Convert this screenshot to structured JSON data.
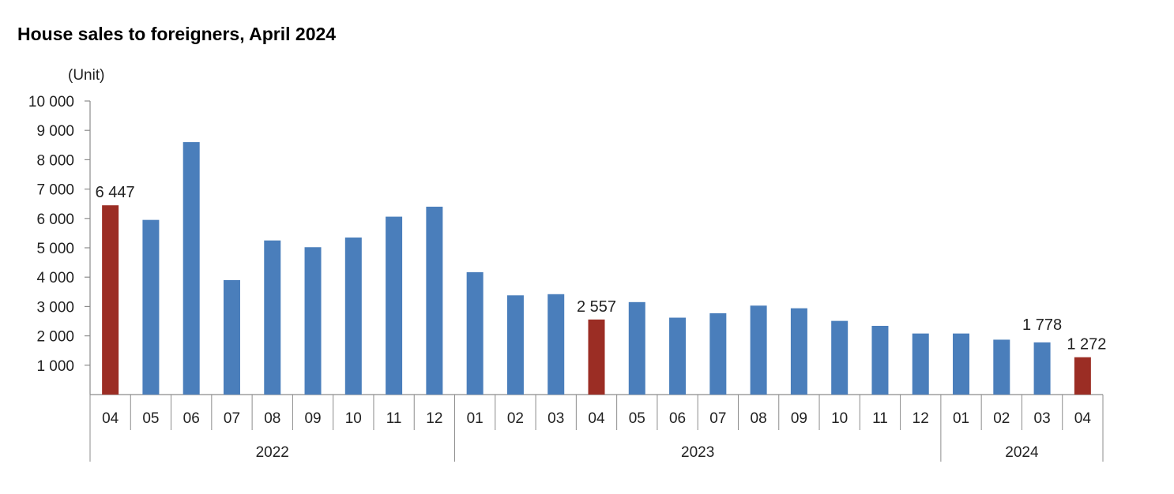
{
  "title": "House sales to foreigners, April 2024",
  "chart_data": {
    "type": "bar",
    "title": "House sales to foreigners, April 2024",
    "unit_label": "(Unit)",
    "ylim": [
      0,
      10000
    ],
    "yticks": [
      {
        "value": 1000,
        "label": "1 000"
      },
      {
        "value": 2000,
        "label": "2 000"
      },
      {
        "value": 3000,
        "label": "3 000"
      },
      {
        "value": 4000,
        "label": "4 000"
      },
      {
        "value": 5000,
        "label": "5 000"
      },
      {
        "value": 6000,
        "label": "6 000"
      },
      {
        "value": 7000,
        "label": "7 000"
      },
      {
        "value": 8000,
        "label": "8 000"
      },
      {
        "value": 9000,
        "label": "9 000"
      },
      {
        "value": 10000,
        "label": "10 000"
      }
    ],
    "grid": false,
    "legend": "none",
    "colors": {
      "default": "#4a7ebb",
      "highlight": "#9b2d24"
    },
    "categories": [
      "04",
      "05",
      "06",
      "07",
      "08",
      "09",
      "10",
      "11",
      "12",
      "01",
      "02",
      "03",
      "04",
      "05",
      "06",
      "07",
      "08",
      "09",
      "10",
      "11",
      "12",
      "01",
      "02",
      "03",
      "04"
    ],
    "values": [
      6447,
      5950,
      8600,
      3900,
      5250,
      5020,
      5350,
      6060,
      6400,
      4170,
      3380,
      3420,
      2557,
      3150,
      2620,
      2770,
      3030,
      2940,
      2510,
      2340,
      2080,
      2080,
      1870,
      1778,
      1272
    ],
    "highlighted": [
      0,
      12,
      24
    ],
    "data_labels": [
      {
        "index": 0,
        "label": "6 447"
      },
      {
        "index": 12,
        "label": "2 557"
      },
      {
        "index": 23,
        "label": "1 778"
      },
      {
        "index": 24,
        "label": "1 272"
      }
    ],
    "year_groups": [
      {
        "label": "2022",
        "start": 0,
        "end": 8
      },
      {
        "label": "2023",
        "start": 9,
        "end": 20
      },
      {
        "label": "2024",
        "start": 21,
        "end": 24
      }
    ]
  }
}
